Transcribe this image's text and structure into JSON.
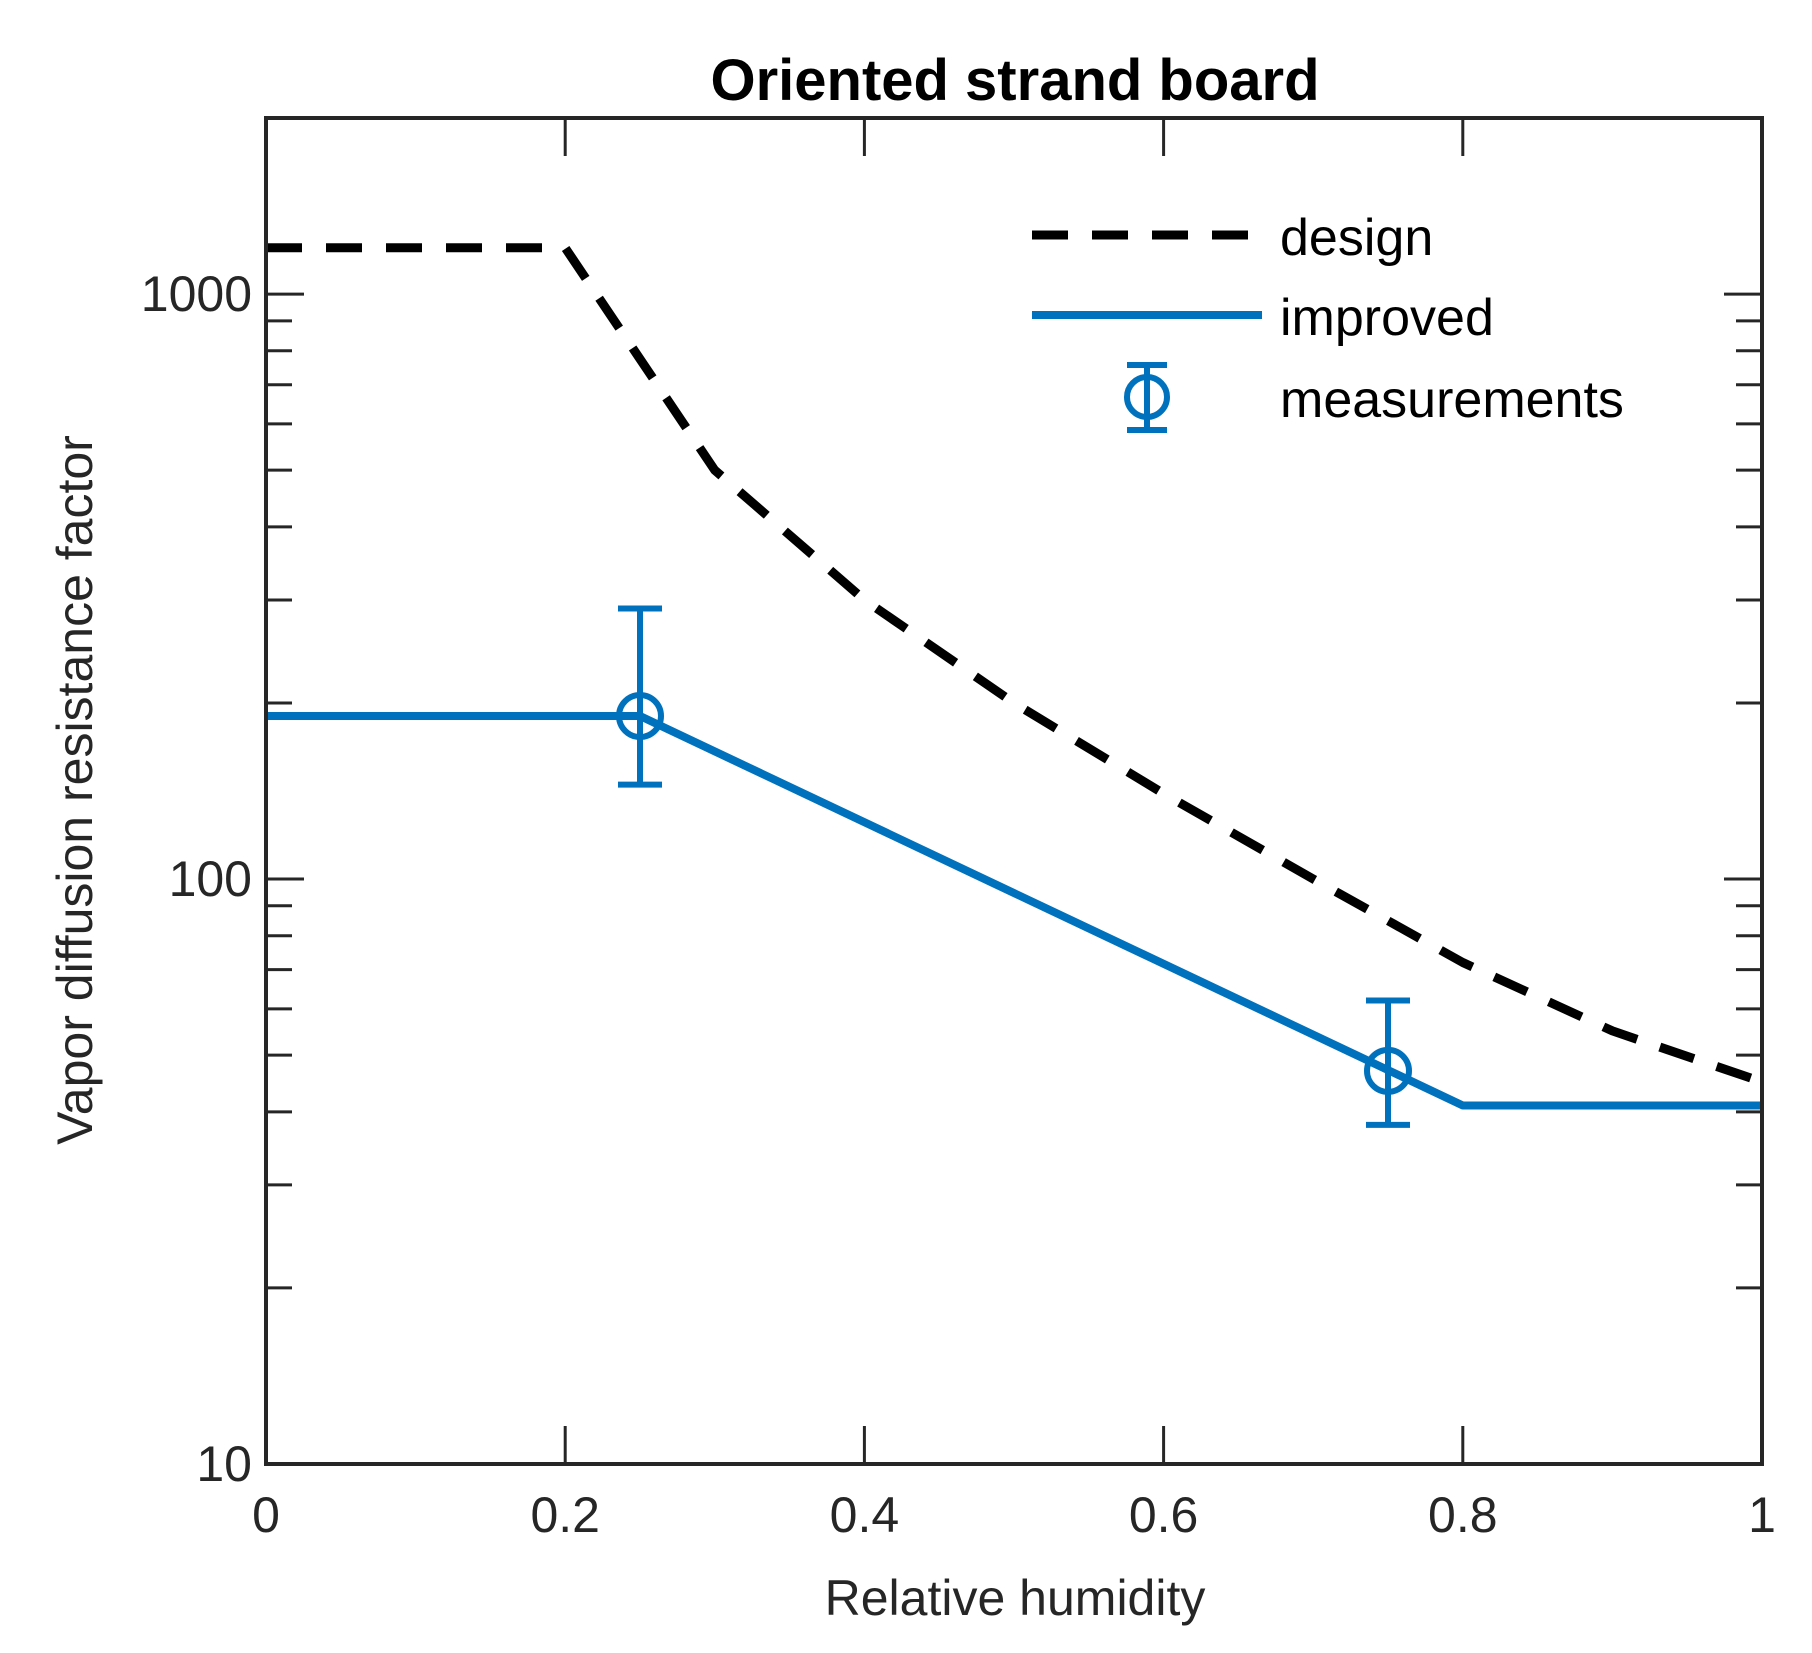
{
  "chart_data": {
    "type": "line",
    "title": "Oriented strand board",
    "xlabel": "Relative humidity",
    "ylabel": "Vapor diffusion resistance factor",
    "xlim": [
      0,
      1
    ],
    "ylim": [
      10,
      2000
    ],
    "yscale": "log",
    "grid": false,
    "legend_position": "top-right",
    "x_ticks": [
      0,
      0.2,
      0.4,
      0.6,
      0.8,
      1
    ],
    "x_tick_labels": [
      "0",
      "0.2",
      "0.4",
      "0.6",
      "0.8",
      "1"
    ],
    "y_ticks": [
      10,
      100,
      1000
    ],
    "y_tick_labels": [
      "10",
      "100",
      "1000"
    ],
    "series": [
      {
        "name": "design",
        "style": "dashed",
        "color": "#000000",
        "x": [
          0,
          0.2,
          0.3,
          0.4,
          0.5,
          0.6,
          0.7,
          0.8,
          0.9,
          1.0
        ],
        "y": [
          1200,
          1200,
          500,
          300,
          200,
          140,
          100,
          72,
          55,
          45
        ]
      },
      {
        "name": "improved",
        "style": "solid",
        "color": "#0072BD",
        "x": [
          0,
          0.25,
          0.8,
          1.0
        ],
        "y": [
          190,
          190,
          41,
          41
        ]
      },
      {
        "name": "measurements",
        "style": "errorbar",
        "color": "#0072BD",
        "x": [
          0.25,
          0.75
        ],
        "y": [
          190,
          47
        ],
        "y_lower": [
          145,
          38
        ],
        "y_upper": [
          290,
          62
        ]
      }
    ]
  }
}
